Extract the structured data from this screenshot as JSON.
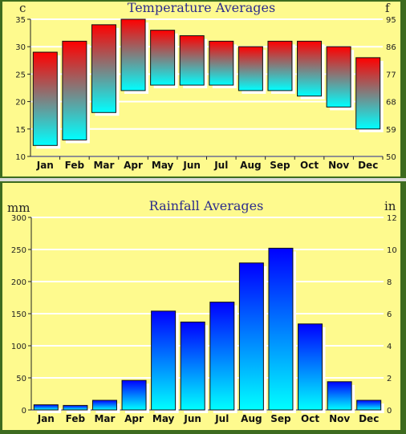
{
  "chart_data": [
    {
      "type": "bar",
      "subtype": "floating-range",
      "title": "Temperature Averages",
      "left_unit": "c",
      "right_unit": "f",
      "categories": [
        "Jan",
        "Feb",
        "Mar",
        "Apr",
        "May",
        "Jun",
        "Jul",
        "Aug",
        "Sep",
        "Oct",
        "Nov",
        "Dec"
      ],
      "series": [
        {
          "low": [
            12,
            13,
            18,
            22,
            23,
            23,
            23,
            22,
            22,
            21,
            19,
            15
          ],
          "high": [
            29,
            31,
            34,
            35,
            33,
            32,
            31,
            30,
            31,
            31,
            30,
            28
          ]
        }
      ],
      "ylim": [
        10,
        35
      ],
      "yticks_left": [
        10,
        15,
        20,
        25,
        30,
        35
      ],
      "yticks_right": [
        50,
        59,
        68,
        77,
        86,
        95
      ],
      "bar_colors": {
        "top": "#ff0000",
        "bottom": "#00ffff"
      },
      "grid": true
    },
    {
      "type": "bar",
      "title": "Rainfall Averages",
      "left_unit": "mm",
      "right_unit": "in",
      "categories": [
        "Jan",
        "Feb",
        "Mar",
        "Apr",
        "May",
        "Jun",
        "Jul",
        "Aug",
        "Sep",
        "Oct",
        "Nov",
        "Dec"
      ],
      "series": [
        {
          "values": [
            8,
            7,
            15,
            46,
            154,
            137,
            168,
            229,
            252,
            134,
            44,
            15
          ]
        }
      ],
      "ylim": [
        0,
        300
      ],
      "yticks_left": [
        0,
        50,
        100,
        150,
        200,
        250,
        300
      ],
      "yticks_right": [
        0,
        2,
        4,
        6,
        8,
        10,
        12
      ],
      "bar_colors": {
        "top": "#0000ff",
        "bottom": "#00ffff"
      },
      "grid": true
    }
  ]
}
